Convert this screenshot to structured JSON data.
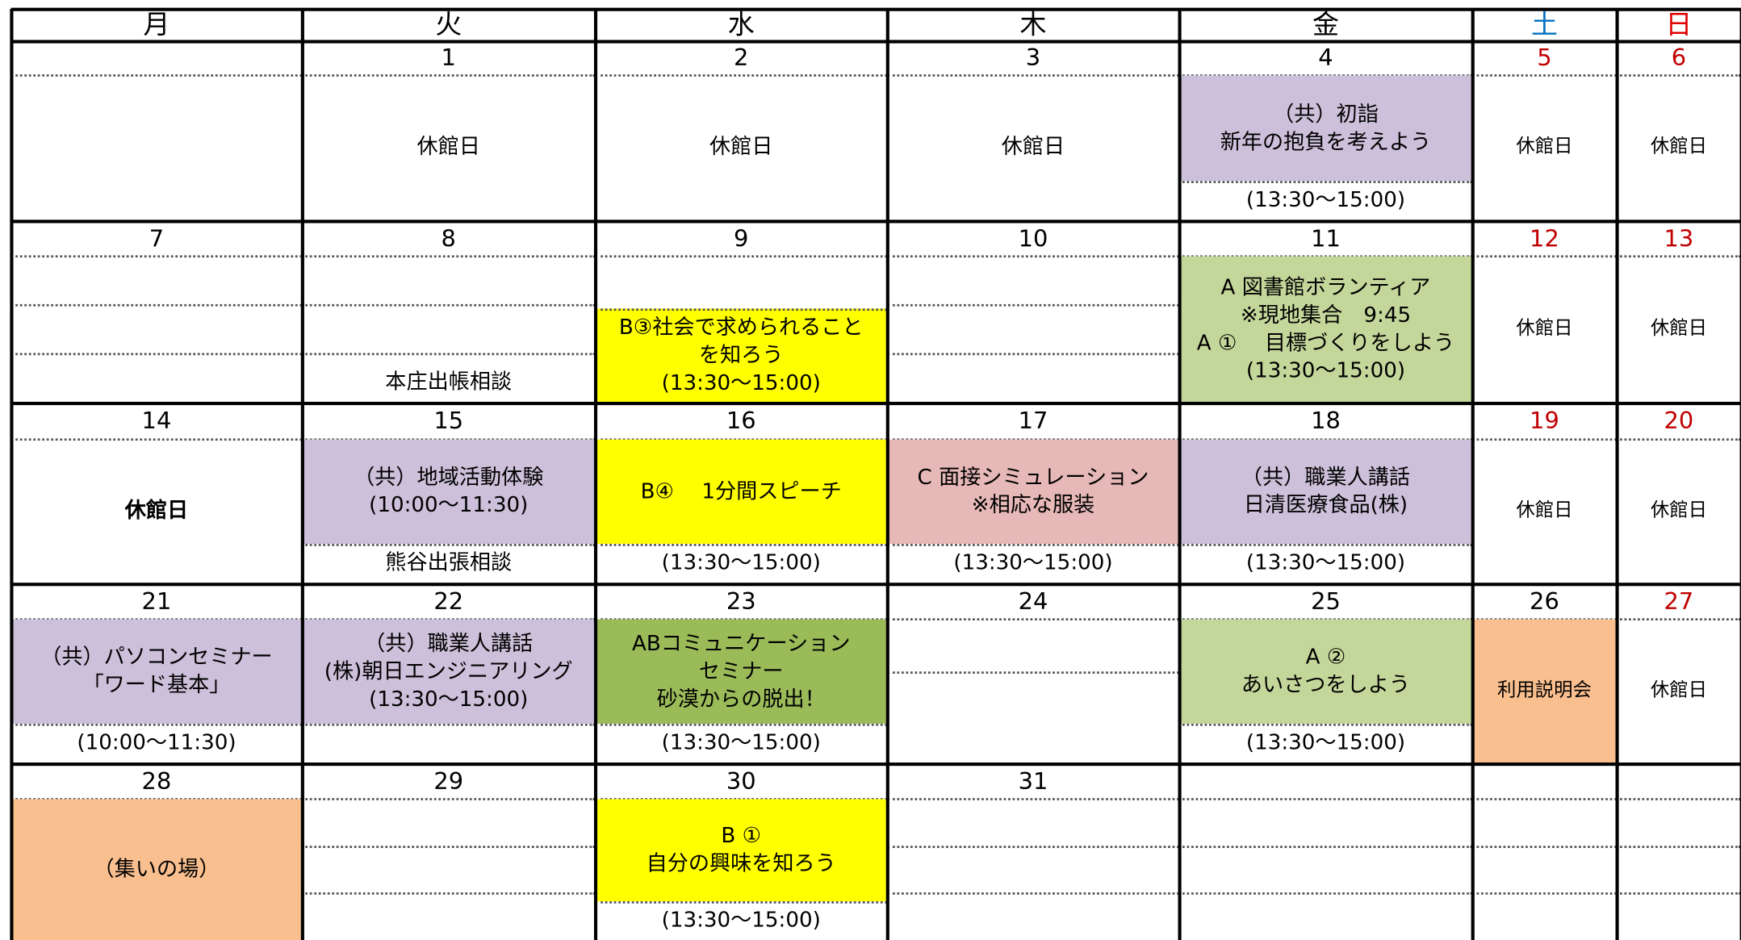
{
  "header": {
    "weekdays": [
      "月",
      "火",
      "水",
      "木",
      "金",
      "土",
      "日"
    ]
  },
  "weeks": [
    [
      {},
      {
        "date": "1",
        "text": [
          "休館日"
        ]
      },
      {
        "date": "2",
        "text": [
          "休館日"
        ]
      },
      {
        "date": "3",
        "text": [
          "休館日"
        ]
      },
      {
        "date": "4",
        "text": [
          "（共）初詣",
          "新年の抱負を考えよう"
        ],
        "color": "#ccc0da",
        "time": "(13:30～15:00)"
      },
      {
        "date": "5",
        "text": [
          "休館日"
        ]
      },
      {
        "date": "6",
        "text": [
          "休館日"
        ]
      }
    ],
    [
      {
        "date": "7"
      },
      {
        "date": "8",
        "note": "本庄出帳相談"
      },
      {
        "date": "9",
        "text": [
          "B③社会で求められること",
          "を知ろう",
          "(13:30～15:00)"
        ],
        "color": "#ffff00"
      },
      {
        "date": "10"
      },
      {
        "date": "11",
        "text": [
          "A 図書館ボランティア",
          "※現地集合　9:45",
          "A ①　 目標づくりをしよう",
          "(13:30～15:00)"
        ],
        "color": "#c4d79b"
      },
      {
        "date": "12",
        "text": [
          "休館日"
        ]
      },
      {
        "date": "13",
        "text": [
          "休館日"
        ]
      }
    ],
    [
      {
        "date": "14",
        "text": [
          "休館日"
        ]
      },
      {
        "date": "15",
        "text": [
          "（共）地域活動体験",
          "(10:00～11:30)"
        ],
        "color": "#ccc0da",
        "note": "熊谷出張相談"
      },
      {
        "date": "16",
        "text": [
          "B④　 1分間スピーチ"
        ],
        "color": "#ffff00",
        "time": "(13:30～15:00)"
      },
      {
        "date": "17",
        "text": [
          "C 面接シミュレーション",
          "※相応な服装"
        ],
        "color": "#e6b8b7",
        "time": "(13:30～15:00)"
      },
      {
        "date": "18",
        "text": [
          "（共）職業人講話",
          "日清医療食品(株)"
        ],
        "color": "#ccc0da",
        "time": "(13:30～15:00)"
      },
      {
        "date": "19",
        "text": [
          "休館日"
        ]
      },
      {
        "date": "20",
        "text": [
          "休館日"
        ]
      }
    ],
    [
      {
        "date": "21",
        "text": [
          "（共）パソコンセミナー",
          "「ワード基本」"
        ],
        "color": "#ccc0da",
        "time": "(10:00～11:30)"
      },
      {
        "date": "22",
        "text": [
          "（共）職業人講話",
          "(株)朝日エンジニアリング",
          "(13:30～15:00)"
        ],
        "color": "#ccc0da"
      },
      {
        "date": "23",
        "text": [
          "ABコミュニケーション",
          "セミナー",
          "砂漠からの脱出！"
        ],
        "color": "#9bbb59",
        "time": "(13:30～15:00)"
      },
      {
        "date": "24"
      },
      {
        "date": "25",
        "text": [
          "A ②",
          "あいさつをしよう"
        ],
        "color": "#c4d79b",
        "time": "(13:30～15:00)"
      },
      {
        "date": "26",
        "text": [
          "利用説明会"
        ],
        "color": "#fabf8f"
      },
      {
        "date": "27",
        "text": [
          "休館日"
        ]
      }
    ],
    [
      {
        "date": "28",
        "text": [
          "（集いの場）"
        ],
        "color": "#fabf8f"
      },
      {
        "date": "29"
      },
      {
        "date": "30",
        "text": [
          "B ①",
          "自分の興味を知ろう"
        ],
        "color": "#ffff00",
        "time": "(13:30～15:00)"
      },
      {
        "date": "31"
      },
      {},
      {},
      {}
    ]
  ]
}
